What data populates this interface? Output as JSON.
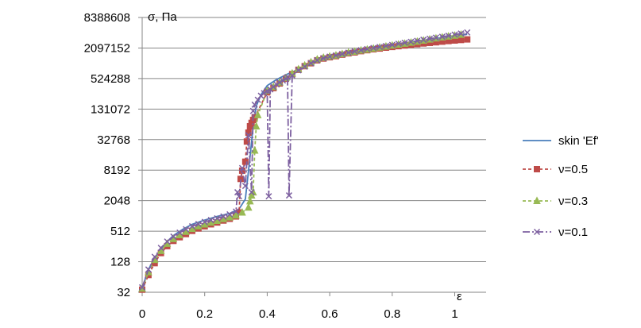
{
  "chart_data": {
    "type": "line",
    "title": "",
    "xlabel": "ε",
    "ylabel": "σ, Па",
    "xlim": [
      0,
      1.05
    ],
    "ylim": [
      32,
      8388608
    ],
    "y_scale": "log2",
    "x_ticks": [
      "0",
      "0.2",
      "0.4",
      "0.6",
      "0.8",
      "1"
    ],
    "y_ticks": [
      "32",
      "128",
      "512",
      "2048",
      "8192",
      "32768",
      "131072",
      "524288",
      "2097152",
      "8388608"
    ],
    "grid": "horizontal",
    "legend_position": "right",
    "colors": {
      "skin": "#4a7ebb",
      "v05": "#be4b48",
      "v03": "#98b954",
      "v01": "#7d60a0",
      "grid": "#868686",
      "axis": "#868686"
    },
    "series": [
      {
        "name": "skin 'Ef'",
        "style": "solid",
        "color": "#4a7ebb",
        "marker": "none",
        "x": [
          0.0,
          0.01,
          0.02,
          0.04,
          0.06,
          0.08,
          0.1,
          0.13,
          0.16,
          0.2,
          0.24,
          0.28,
          0.31,
          0.33,
          0.345,
          0.355,
          0.365,
          0.38,
          0.4,
          0.43,
          0.46,
          0.5,
          0.55,
          0.6,
          0.65,
          0.7,
          0.75,
          0.8,
          0.85,
          0.9,
          0.95,
          1.0,
          1.04
        ],
        "y": [
          32,
          60,
          90,
          150,
          230,
          320,
          420,
          560,
          700,
          850,
          1000,
          1150,
          1400,
          2200,
          15000,
          60000,
          150000,
          250000,
          380000,
          500000,
          620000,
          800000,
          1050000,
          1350000,
          1650000,
          1900000,
          2100000,
          2400000,
          2700000,
          3000000,
          3300000,
          3600000,
          3900000
        ]
      },
      {
        "name": "ν=0.5",
        "style": "dashed",
        "color": "#be4b48",
        "marker": "square",
        "x": [
          0.0,
          0.02,
          0.04,
          0.06,
          0.08,
          0.1,
          0.12,
          0.14,
          0.16,
          0.18,
          0.2,
          0.22,
          0.24,
          0.26,
          0.28,
          0.3,
          0.31,
          0.315,
          0.32,
          0.33,
          0.335,
          0.34,
          0.345,
          0.35,
          0.355,
          0.36,
          0.4,
          0.42,
          0.44,
          0.46,
          0.48,
          0.5,
          0.52,
          0.54,
          0.56,
          0.58,
          0.6,
          0.62,
          0.64,
          0.66,
          0.68,
          0.7,
          0.72,
          0.74,
          0.76,
          0.78,
          0.8,
          0.82,
          0.84,
          0.86,
          0.88,
          0.9,
          0.92,
          0.94,
          0.96,
          0.98,
          1.0,
          1.02,
          1.04
        ],
        "y": [
          36,
          70,
          120,
          190,
          260,
          330,
          390,
          450,
          520,
          580,
          640,
          700,
          760,
          830,
          900,
          1000,
          1200,
          5500,
          8000,
          12000,
          30000,
          45000,
          60000,
          70000,
          80000,
          90000,
          280000,
          340000,
          420000,
          520000,
          640000,
          780000,
          920000,
          1050000,
          1200000,
          1300000,
          1380000,
          1450000,
          1550000,
          1650000,
          1720000,
          1820000,
          1900000,
          1980000,
          2050000,
          2130000,
          2200000,
          2280000,
          2350000,
          2420000,
          2500000,
          2580000,
          2650000,
          2720000,
          2800000,
          2880000,
          2950000,
          3020000,
          3100000
        ]
      },
      {
        "name": "ν=0.3",
        "style": "dashed",
        "color": "#98b954",
        "marker": "triangle",
        "x": [
          0.0,
          0.02,
          0.04,
          0.06,
          0.08,
          0.1,
          0.12,
          0.14,
          0.16,
          0.18,
          0.2,
          0.22,
          0.24,
          0.26,
          0.28,
          0.3,
          0.32,
          0.34,
          0.345,
          0.35,
          0.355,
          0.36,
          0.365,
          0.37,
          0.4,
          0.42,
          0.44,
          0.46,
          0.48,
          0.5,
          0.52,
          0.54,
          0.56,
          0.58,
          0.6,
          0.62,
          0.64,
          0.66,
          0.68,
          0.7,
          0.72,
          0.74,
          0.76,
          0.78,
          0.8,
          0.82,
          0.84,
          0.86,
          0.88,
          0.9,
          0.92,
          0.94,
          0.96,
          0.98,
          1.0,
          1.02
        ],
        "y": [
          38,
          80,
          140,
          210,
          290,
          360,
          430,
          500,
          570,
          640,
          700,
          760,
          820,
          890,
          960,
          1050,
          1200,
          1500,
          2000,
          2600,
          3000,
          20000,
          60000,
          100000,
          300000,
          360000,
          440000,
          540000,
          660000,
          800000,
          950000,
          1100000,
          1250000,
          1350000,
          1430000,
          1500000,
          1600000,
          1700000,
          1780000,
          1880000,
          1960000,
          2050000,
          2150000,
          2250000,
          2350000,
          2450000,
          2560000,
          2680000,
          2800000,
          2950000,
          3100000,
          3250000,
          3400000,
          3550000,
          3700000,
          3850000
        ]
      },
      {
        "name": "ν=0.1",
        "style": "dashdot",
        "color": "#7d60a0",
        "marker": "x",
        "x": [
          0.0,
          0.02,
          0.04,
          0.06,
          0.08,
          0.1,
          0.12,
          0.14,
          0.16,
          0.18,
          0.2,
          0.22,
          0.24,
          0.26,
          0.28,
          0.3,
          0.305,
          0.31,
          0.32,
          0.33,
          0.34,
          0.35,
          0.355,
          0.36,
          0.37,
          0.38,
          0.39,
          0.4,
          0.405,
          0.41,
          0.42,
          0.43,
          0.44,
          0.45,
          0.46,
          0.465,
          0.47,
          0.48,
          0.5,
          0.52,
          0.54,
          0.56,
          0.58,
          0.6,
          0.62,
          0.64,
          0.66,
          0.68,
          0.7,
          0.72,
          0.74,
          0.76,
          0.78,
          0.8,
          0.82,
          0.84,
          0.86,
          0.88,
          0.9,
          0.92,
          0.94,
          0.96,
          0.98,
          1.0,
          1.02,
          1.04
        ],
        "y": [
          40,
          90,
          160,
          240,
          320,
          400,
          480,
          560,
          640,
          710,
          780,
          850,
          920,
          1000,
          1100,
          1250,
          3000,
          2500,
          9000,
          4000,
          40000,
          3000,
          120000,
          160000,
          200000,
          240000,
          270000,
          300000,
          2500,
          320000,
          360000,
          400000,
          440000,
          480000,
          520000,
          560000,
          2600,
          600000,
          760000,
          900000,
          1050000,
          1200000,
          1320000,
          1420000,
          1500000,
          1600000,
          1700000,
          1800000,
          1900000,
          2000000,
          2100000,
          2200000,
          2300000,
          2420000,
          2540000,
          2660000,
          2780000,
          2900000,
          3050000,
          3200000,
          3350000,
          3500000,
          3650000,
          3850000,
          4050000,
          4250000
        ]
      }
    ]
  }
}
